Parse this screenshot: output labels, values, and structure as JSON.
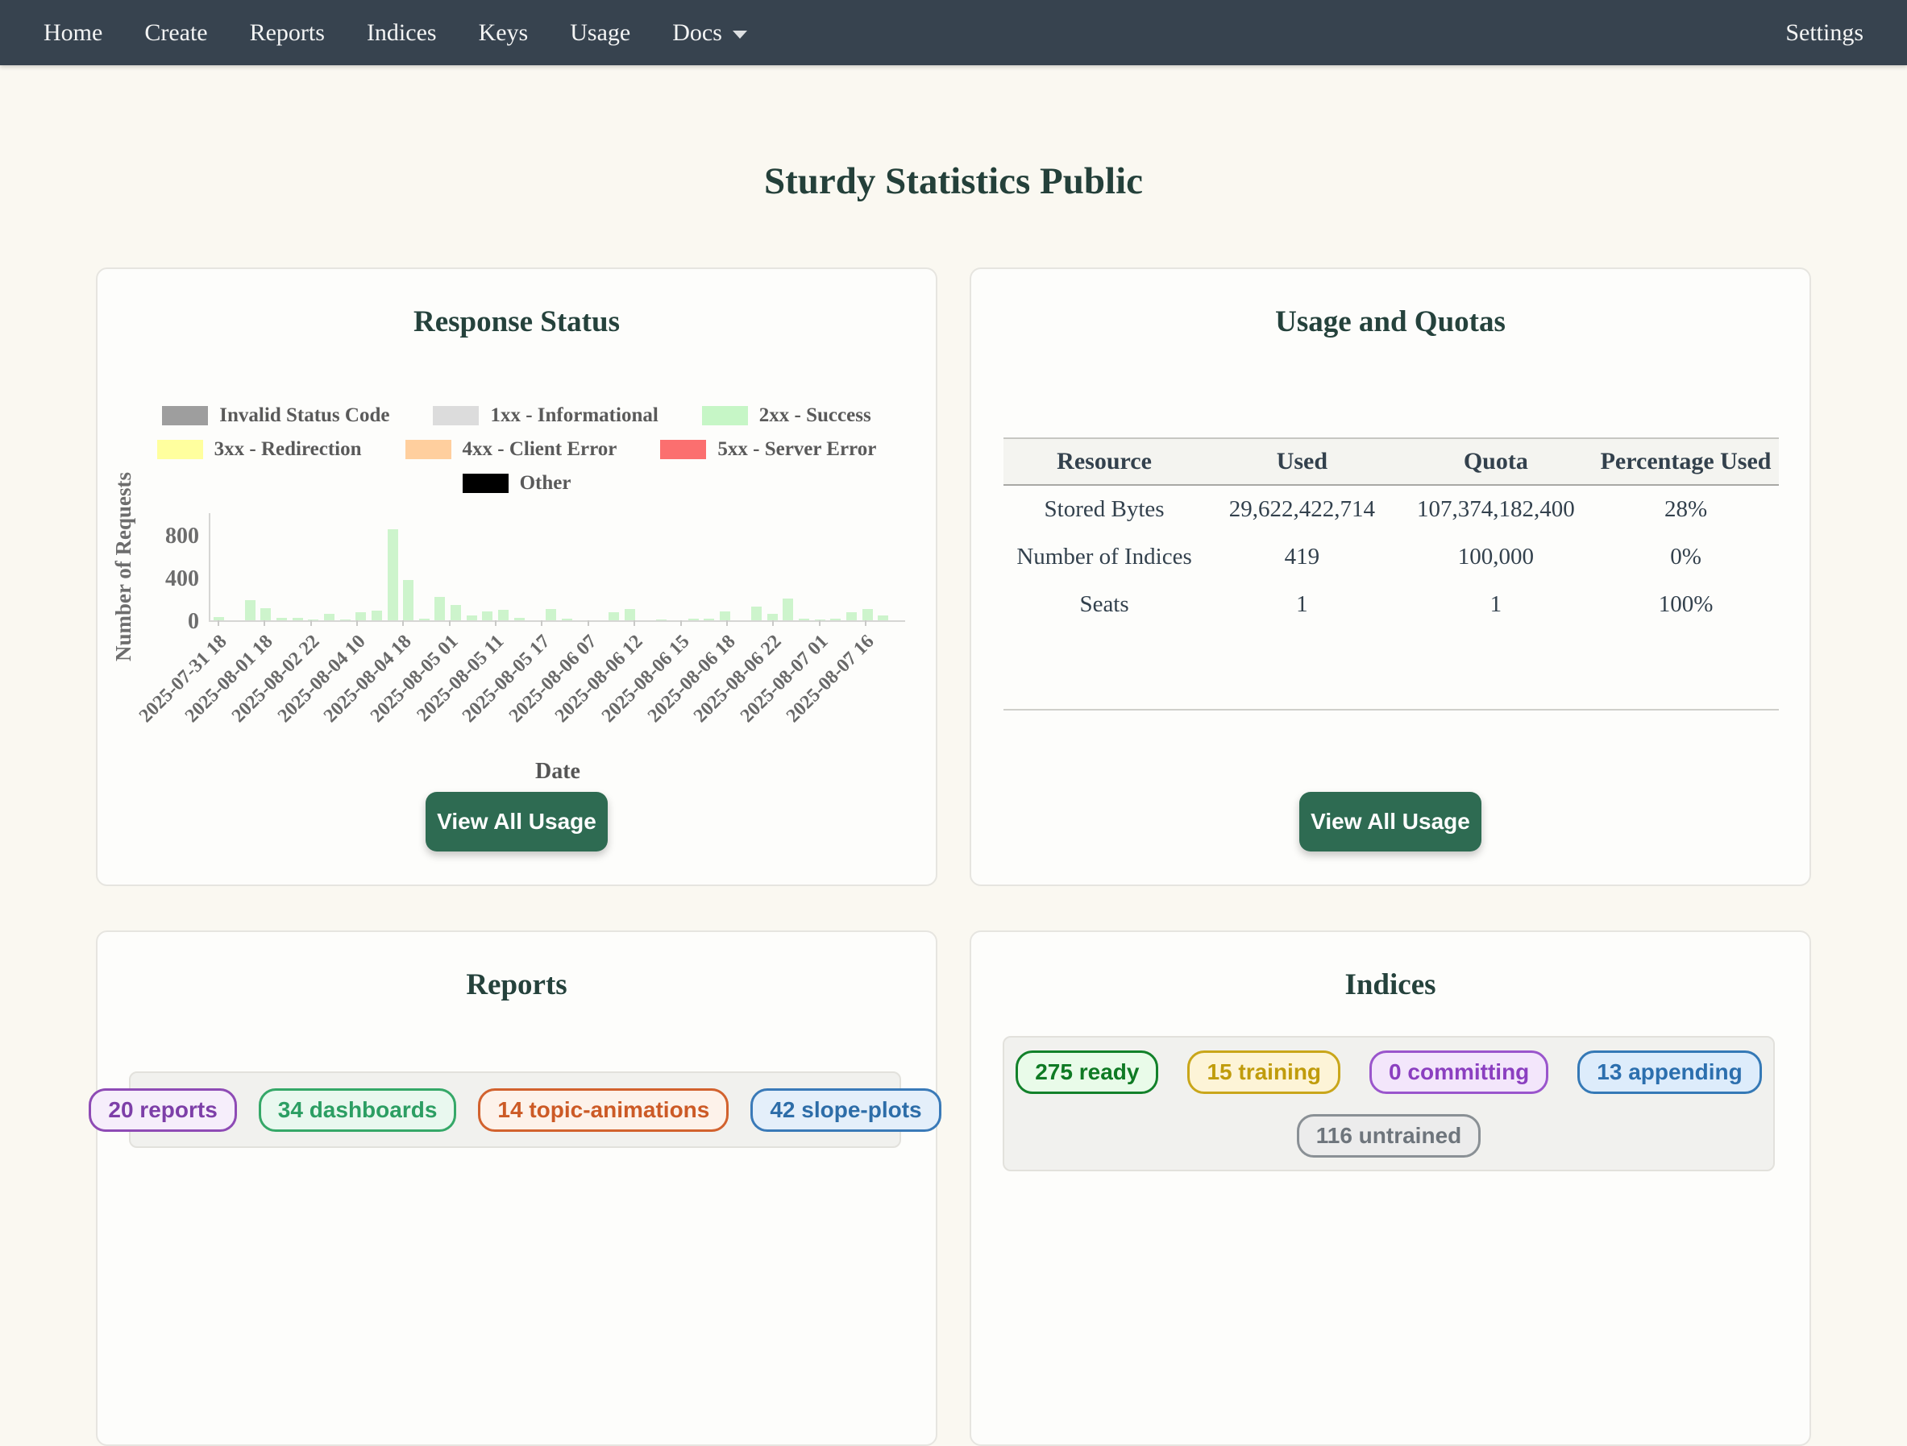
{
  "navbar": {
    "items": [
      "Home",
      "Create",
      "Reports",
      "Indices",
      "Keys",
      "Usage",
      "Docs"
    ],
    "settings_label": "Settings"
  },
  "page_title": "Sturdy Statistics Public",
  "response_status_card": {
    "title": "Response Status",
    "button_label": "View All Usage"
  },
  "usage_card": {
    "title": "Usage and Quotas",
    "button_label": "View All Usage",
    "table": {
      "headers": [
        "Resource",
        "Used",
        "Quota",
        "Percentage Used"
      ],
      "rows": [
        [
          "Stored Bytes",
          "29,622,422,714",
          "107,374,182,400",
          "28%"
        ],
        [
          "Number of Indices",
          "419",
          "100,000",
          "0%"
        ],
        [
          "Seats",
          "1",
          "1",
          "100%"
        ]
      ]
    }
  },
  "reports_card": {
    "title": "Reports",
    "badges": [
      {
        "label": "20 reports",
        "text": "#7d3fa8",
        "border": "#8e4bb5",
        "bg": "#f6eefb"
      },
      {
        "label": "34 dashboards",
        "text": "#2c9e63",
        "border": "#35a868",
        "bg": "#e9f8ef"
      },
      {
        "label": "14 topic-animations",
        "text": "#cc5a26",
        "border": "#d2622e",
        "bg": "#fdf2ea"
      },
      {
        "label": "42 slope-plots",
        "text": "#2d6da8",
        "border": "#3a7ab8",
        "bg": "#e4effa"
      }
    ]
  },
  "indices_card": {
    "title": "Indices",
    "badges_row1": [
      {
        "label": "275 ready",
        "text": "#0f7a24",
        "border": "#12812a",
        "bg": "#e9fbe9"
      },
      {
        "label": "15 training",
        "text": "#c09c0c",
        "border": "#c9a61a",
        "bg": "#fdf4d7"
      },
      {
        "label": "0 committing",
        "text": "#8b3fc0",
        "border": "#9a55cc",
        "bg": "#f3e6fb"
      },
      {
        "label": "13 appending",
        "text": "#2c6fae",
        "border": "#3579b6",
        "bg": "#ddecfb"
      }
    ],
    "badges_row2": [
      {
        "label": "116 untrained",
        "text": "#6e757c",
        "border": "#8a9095",
        "bg": "#ececec"
      }
    ]
  },
  "chart_data": {
    "type": "bar",
    "title": "Response Status",
    "xlabel": "Date",
    "ylabel": "Number of Requests",
    "ylim": [
      0,
      1020
    ],
    "yticks": [
      0,
      400,
      800
    ],
    "grid": false,
    "legend_position": "top",
    "bar_color": "#cdf4cc",
    "visible_series": "2xx - Success",
    "values": [
      28,
      0,
      186,
      114,
      23,
      21,
      5,
      60,
      9,
      79,
      93,
      856,
      379,
      12,
      216,
      140,
      42,
      81,
      98,
      19,
      0,
      109,
      14,
      0,
      0,
      72,
      102,
      0,
      7,
      0,
      14,
      16,
      86,
      0,
      128,
      60,
      205,
      14,
      9,
      14,
      72,
      102,
      47,
      0
    ],
    "xticklabels": [
      "2025-07-31 18",
      "2025-08-01 18",
      "2025-08-02 22",
      "2025-08-04 10",
      "2025-08-04 18",
      "2025-08-05 01",
      "2025-08-05 11",
      "2025-08-05 17",
      "2025-08-06 07",
      "2025-08-06 12",
      "2025-08-06 15",
      "2025-08-06 18",
      "2025-08-06 22",
      "2025-08-07 01",
      "2025-08-07 16"
    ],
    "legend": [
      {
        "label": "Invalid Status Code",
        "color": "#9e9e9e"
      },
      {
        "label": "1xx - Informational",
        "color": "#dcdcdc"
      },
      {
        "label": "2xx - Success",
        "color": "#c6f6c6"
      },
      {
        "label": "3xx - Redirection",
        "color": "#ffff9e"
      },
      {
        "label": "4xx - Client Error",
        "color": "#ffcf9e"
      },
      {
        "label": "5xx - Server Error",
        "color": "#fb6f6f"
      },
      {
        "label": "Other",
        "color": "#000000"
      }
    ]
  },
  "colors": {
    "navbar_bg": "#37434f",
    "page_bg": "#faf8f1",
    "button_green": "#2e6b52",
    "title_text": "#24403a"
  }
}
